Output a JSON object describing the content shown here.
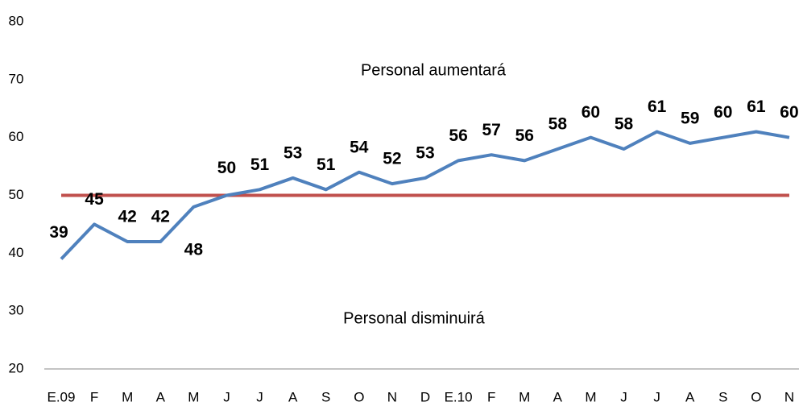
{
  "chart_data": {
    "type": "line",
    "categories": [
      "E.09",
      "F",
      "M",
      "A",
      "M",
      "J",
      "J",
      "A",
      "S",
      "O",
      "N",
      "D",
      "E.10",
      "F",
      "M",
      "A",
      "M",
      "J",
      "J",
      "A",
      "S",
      "O",
      "N"
    ],
    "series": [
      {
        "color": "#4f81bd",
        "values": [
          39,
          45,
          42,
          42,
          48,
          50,
          51,
          53,
          51,
          54,
          52,
          53,
          56,
          57,
          56,
          58,
          60,
          58,
          61,
          59,
          60,
          61,
          60
        ]
      }
    ],
    "reference_line": {
      "value": 50,
      "color": "#c0504d"
    },
    "annotations": [
      "Personal aumentará",
      "Personal disminuirá"
    ],
    "ylim": [
      20,
      80
    ],
    "yticks": [
      20,
      30,
      40,
      50,
      60,
      70,
      80
    ],
    "grid": false
  }
}
